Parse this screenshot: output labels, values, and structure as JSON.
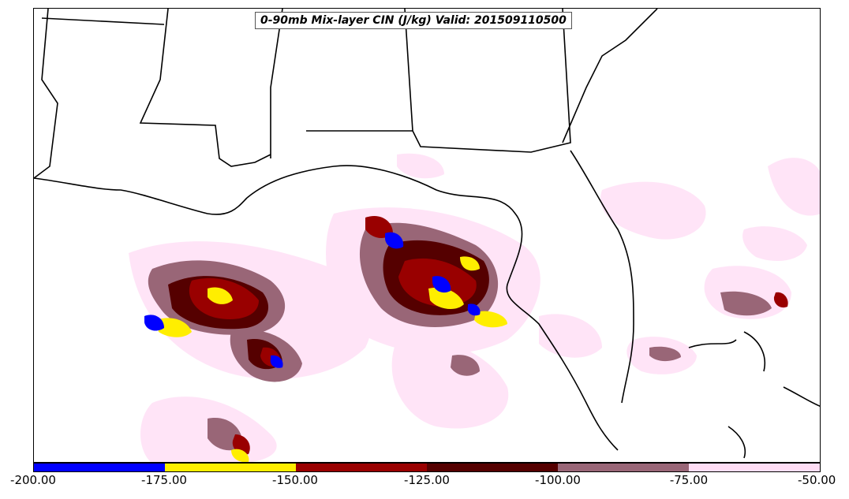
{
  "title": "0-90mb Mix-layer CIN (J/kg) Valid: 201509110500",
  "colorbar": {
    "ticks": [
      "-200.00",
      "-175.00",
      "-150.00",
      "-125.00",
      "-100.00",
      "-75.00",
      "-50.00"
    ],
    "colors": [
      "#0000ff",
      "#ffee00",
      "#990000",
      "#550000",
      "#996677",
      "#ffddf5"
    ]
  },
  "palette": {
    "blue": "#0000ff",
    "yellow": "#ffee00",
    "red": "#990000",
    "darkred": "#550000",
    "mauve": "#996677",
    "pink": "#ffe4f7",
    "coast": "#000000"
  }
}
